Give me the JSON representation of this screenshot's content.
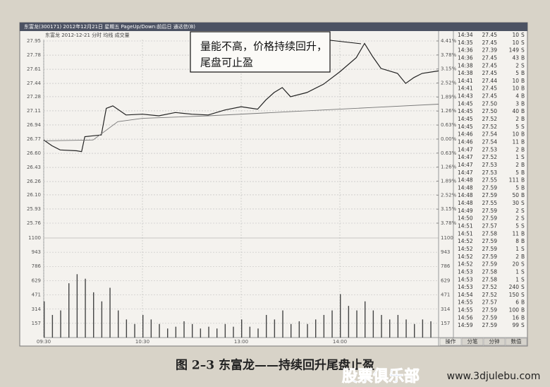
{
  "header": {
    "title": "东富龙(300171)  2012年12月21日 星期五  PageUp/Down:前后日  通达信(B)",
    "subtitle": "东富龙   2012-12-21 分时 均线 成交量"
  },
  "chart_data": [
    {
      "type": "line",
      "xlim": [
        0,
        240
      ],
      "xticks": [
        {
          "value": 0,
          "label": "09:30"
        },
        {
          "value": 60,
          "label": "10:30"
        },
        {
          "value": 120,
          "label": "13:00"
        },
        {
          "value": 180,
          "label": "14:00"
        }
      ],
      "ylim": [
        25.76,
        27.95
      ],
      "yticks": [
        27.95,
        27.78,
        27.61,
        27.44,
        27.28,
        27.11,
        26.94,
        26.77,
        {
          "value": 26.6,
          "label": "26.60"
        },
        26.43,
        26.26,
        {
          "value": 26.1,
          "label": "26.10"
        },
        25.93,
        25.76
      ],
      "y2lim": [
        -3.78,
        4.41
      ],
      "y2ticks": [
        {
          "value": 4.41,
          "label": "4.41%"
        },
        {
          "value": 3.78,
          "label": "3.78%"
        },
        {
          "value": 3.15,
          "label": "3.15%"
        },
        {
          "value": 2.52,
          "label": "2.52%"
        },
        {
          "value": 1.89,
          "label": "1.89%"
        },
        {
          "value": 1.26,
          "label": "1.26%"
        },
        {
          "value": 0.63,
          "label": "0.63%"
        },
        {
          "value": 0,
          "label": "0.00%"
        },
        {
          "value": -0.63,
          "label": "0.63%"
        },
        {
          "value": -1.26,
          "label": "1.26%"
        },
        {
          "value": -1.89,
          "label": "1.89%"
        },
        {
          "value": -2.52,
          "label": "2.52%"
        },
        {
          "value": -3.15,
          "label": "3.15%"
        },
        {
          "value": -3.78,
          "label": "3.78%"
        }
      ],
      "grid": true,
      "series": [
        {
          "color": "#222222",
          "x": [
            0,
            5,
            10,
            20,
            23,
            25,
            35,
            38,
            42,
            50,
            60,
            70,
            80,
            90,
            100,
            110,
            120,
            130,
            135,
            140,
            145,
            150,
            160,
            170,
            180,
            190,
            195,
            200,
            205,
            215,
            220,
            225,
            230,
            240
          ],
          "values": [
            26.76,
            26.69,
            26.64,
            26.63,
            26.62,
            26.8,
            26.82,
            27.14,
            27.17,
            27.06,
            27.07,
            27.05,
            27.09,
            27.07,
            27.06,
            27.12,
            27.16,
            27.13,
            27.24,
            27.33,
            27.39,
            27.28,
            27.33,
            27.43,
            27.58,
            27.75,
            27.92,
            27.76,
            27.62,
            27.56,
            27.44,
            27.51,
            27.56,
            27.59
          ]
        },
        {
          "color": "#777777",
          "x": [
            0,
            30,
            45,
            60,
            100,
            150,
            200,
            240
          ],
          "values": [
            26.75,
            26.76,
            26.98,
            27.02,
            27.05,
            27.1,
            27.15,
            27.19
          ]
        }
      ],
      "annotation": [
        "量能不高，价格持续回升，",
        "尾盘可止盈"
      ]
    },
    {
      "type": "bar",
      "xlim": [
        0,
        240
      ],
      "ylim": [
        0,
        1100
      ],
      "yticks": [
        1100,
        943,
        786,
        629,
        471,
        314,
        157
      ],
      "grid": true,
      "color": "#444444",
      "x": [
        0,
        5,
        10,
        15,
        20,
        25,
        30,
        35,
        40,
        45,
        50,
        55,
        60,
        65,
        70,
        75,
        80,
        85,
        90,
        95,
        100,
        105,
        110,
        115,
        120,
        125,
        130,
        135,
        140,
        145,
        150,
        155,
        160,
        165,
        170,
        175,
        180,
        185,
        190,
        195,
        200,
        205,
        210,
        215,
        220,
        225,
        230,
        235
      ],
      "values": [
        400,
        250,
        300,
        600,
        700,
        650,
        500,
        400,
        550,
        300,
        200,
        150,
        250,
        200,
        150,
        100,
        120,
        180,
        150,
        100,
        120,
        100,
        150,
        120,
        200,
        120,
        100,
        250,
        200,
        300,
        150,
        180,
        150,
        200,
        250,
        300,
        480,
        350,
        300,
        400,
        300,
        250,
        200,
        250,
        200,
        150,
        200,
        180
      ]
    }
  ],
  "trade_table": {
    "rows": [
      [
        "14:34",
        "27.45",
        "10",
        "S"
      ],
      [
        "14:35",
        "27.45",
        "10",
        "S"
      ],
      [
        "14:36",
        "27.39",
        "149",
        "S"
      ],
      [
        "14:36",
        "27.45",
        "43",
        "B"
      ],
      [
        "14:38",
        "27.45",
        "2",
        "S"
      ],
      [
        "14:38",
        "27.45",
        "5",
        "B"
      ],
      [
        "14:41",
        "27.44",
        "10",
        "B"
      ],
      [
        "14:41",
        "27.45",
        "10",
        "B"
      ],
      [
        "14:43",
        "27.45",
        "4",
        "B"
      ],
      [
        "14:45",
        "27.50",
        "3",
        "B"
      ],
      [
        "14:45",
        "27.50",
        "40",
        "B"
      ],
      [
        "14:45",
        "27.52",
        "2",
        "B"
      ],
      [
        "14:45",
        "27.52",
        "5",
        "S"
      ],
      [
        "14:46",
        "27.54",
        "10",
        "B"
      ],
      [
        "14:46",
        "27.54",
        "11",
        "B"
      ],
      [
        "14:47",
        "27.53",
        "2",
        "B"
      ],
      [
        "14:47",
        "27.52",
        "1",
        "S"
      ],
      [
        "14:47",
        "27.53",
        "2",
        "B"
      ],
      [
        "14:47",
        "27.53",
        "5",
        "B"
      ],
      [
        "14:48",
        "27.55",
        "111",
        "B"
      ],
      [
        "14:48",
        "27.59",
        "5",
        "B"
      ],
      [
        "14:48",
        "27.59",
        "50",
        "B"
      ],
      [
        "14:48",
        "27.55",
        "30",
        "S"
      ],
      [
        "14:49",
        "27.59",
        "2",
        "S"
      ],
      [
        "14:50",
        "27.59",
        "2",
        "S"
      ],
      [
        "14:51",
        "27.57",
        "5",
        "S"
      ],
      [
        "14:51",
        "27.58",
        "11",
        "B"
      ],
      [
        "14:52",
        "27.59",
        "8",
        "B"
      ],
      [
        "14:52",
        "27.59",
        "1",
        "S"
      ],
      [
        "14:52",
        "27.59",
        "2",
        "B"
      ],
      [
        "14:52",
        "27.59",
        "20",
        "S"
      ],
      [
        "14:53",
        "27.58",
        "1",
        "S"
      ],
      [
        "14:53",
        "27.58",
        "1",
        "S"
      ],
      [
        "14:53",
        "27.52",
        "240",
        "S"
      ],
      [
        "14:54",
        "27.52",
        "150",
        "S"
      ],
      [
        "14:55",
        "27.57",
        "6",
        "B"
      ],
      [
        "14:55",
        "27.59",
        "100",
        "B"
      ],
      [
        "14:56",
        "27.59",
        "16",
        "B"
      ],
      [
        "14:59",
        "27.59",
        "99",
        "S"
      ]
    ]
  },
  "tabs": [
    "操作",
    "分笔",
    "分钟",
    "数值"
  ],
  "caption": "图 2–3   东富龙——持续回升尾盘止盈",
  "watermark": {
    "brand": "股票俱乐部",
    "url": "www.3djulebu.com"
  }
}
